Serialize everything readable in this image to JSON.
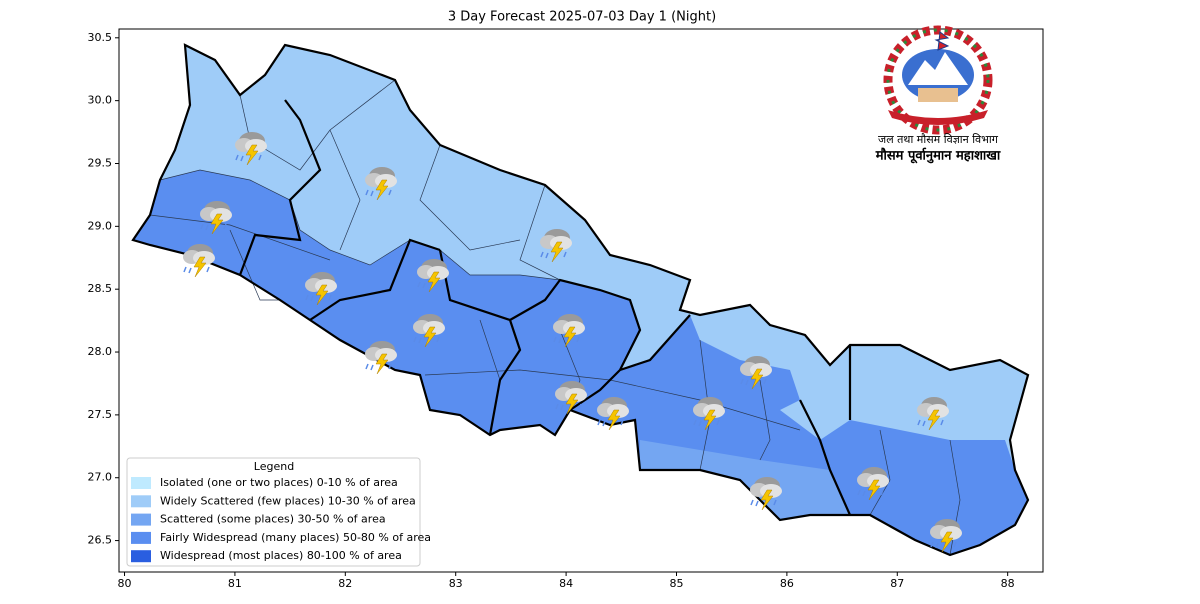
{
  "chart_data": {
    "type": "map",
    "title": "3 Day Forecast 2025-07-03 Day 1 (Night)",
    "xlim": [
      79.95,
      88.32
    ],
    "ylim": [
      26.25,
      30.57
    ],
    "xticks": [
      80,
      81,
      82,
      83,
      84,
      85,
      86,
      87,
      88
    ],
    "yticks": [
      26.5,
      {
        "value": 27,
        "label": "27.0"
      },
      27.5,
      {
        "value": 28,
        "label": "28.0"
      },
      28.5,
      {
        "value": 29,
        "label": "29.0"
      },
      29.5,
      {
        "value": 30,
        "label": "30.0"
      },
      30.5
    ],
    "legend": {
      "title": "Legend",
      "items": [
        {
          "name": "Isolated (one or two places)  0-10 % of area",
          "color": "#bfeaff"
        },
        {
          "name": "Widely Scattered (few places) 10-30 % of area",
          "color": "#9fccf8"
        },
        {
          "name": "Scattered (some places) 30-50  % of area",
          "color": "#74a6f2"
        },
        {
          "name": "Fairly Widespread (many places) 50-80 % of area",
          "color": "#5a8ef0"
        },
        {
          "name": "Widespread (most places) 80-100 % of area",
          "color": "#2a5ee0"
        }
      ]
    },
    "logo": {
      "line1": "जल तथा मौसम विज्ञान विभाग",
      "line2": "मौसम पूर्वानुमान महाशाखा"
    }
  }
}
